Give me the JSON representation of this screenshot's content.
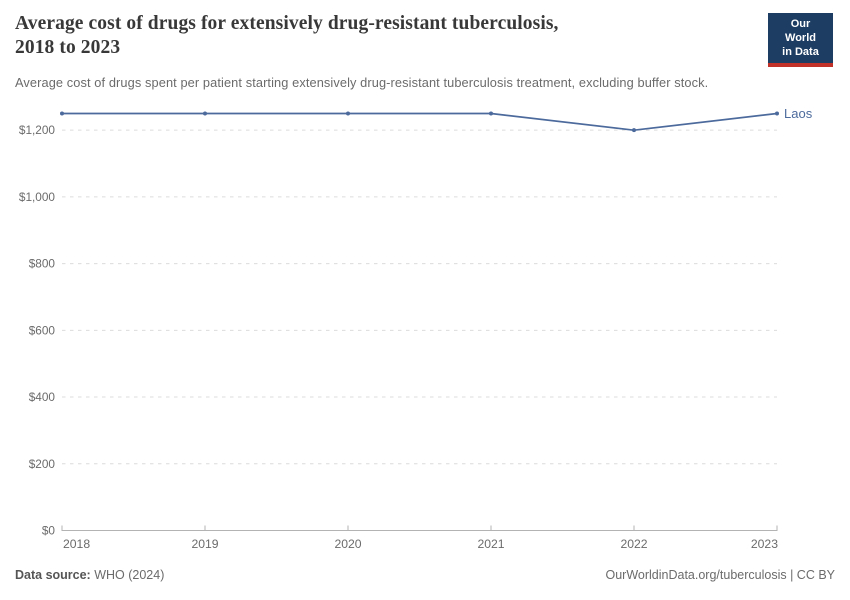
{
  "header": {
    "title_line1": "Average cost of drugs for extensively drug-resistant tuberculosis,",
    "title_line2": "2018 to 2023",
    "subtitle": "Average cost of drugs spent per patient starting extensively drug-resistant tuberculosis treatment, excluding buffer stock.",
    "logo": {
      "line1": "Our World",
      "line2": "in Data",
      "bg_color": "#1d3d63",
      "stripe_color": "#c2302a"
    }
  },
  "chart_data": {
    "type": "line",
    "title": "Average cost of drugs for extensively drug-resistant tuberculosis, 2018 to 2023",
    "subtitle": "Average cost of drugs spent per patient starting extensively drug-resistant tuberculosis treatment, excluding buffer stock.",
    "x": [
      2018,
      2019,
      2020,
      2021,
      2022,
      2023
    ],
    "x_tick_labels": [
      "2018",
      "2019",
      "2020",
      "2021",
      "2022",
      "2023"
    ],
    "series": [
      {
        "name": "Laos",
        "color": "#4c6a9c",
        "values": [
          1250,
          1250,
          1250,
          1250,
          1200,
          1250
        ]
      }
    ],
    "ylim": [
      0,
      1250
    ],
    "yticks": [
      0,
      200,
      400,
      600,
      800,
      1000,
      1200
    ],
    "ytick_labels": [
      "$0",
      "$200",
      "$400",
      "$600",
      "$800",
      "$1,000",
      "$1,200"
    ],
    "grid": "horizontal-dashed",
    "legend": "line-end-label",
    "xlabel": "",
    "ylabel": ""
  },
  "footer": {
    "source_label": "Data source:",
    "source_value": "WHO (2024)",
    "attribution": "OurWorldinData.org/tuberculosis | CC BY"
  }
}
